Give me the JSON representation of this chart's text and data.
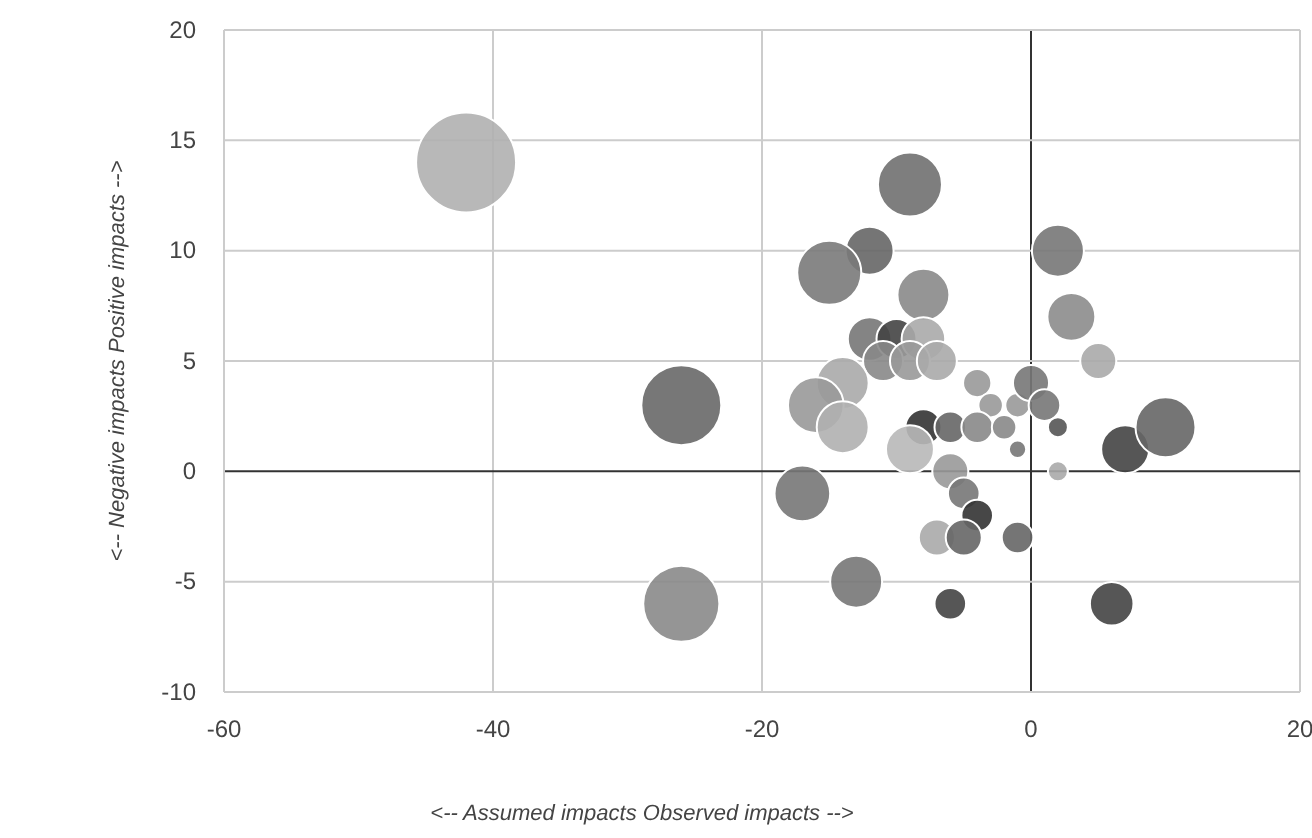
{
  "chart_data": {
    "type": "bubble",
    "xlabel": "<-- Assumed impacts Observed impacts -->",
    "ylabel": "<-- Negative impacts Positive impacts -->",
    "x": [
      -42,
      -26,
      -26,
      -9,
      -12,
      -15,
      -8,
      2,
      3,
      5,
      -12,
      -10,
      -8,
      -11,
      -9,
      -7,
      -14,
      -16,
      -14,
      -4,
      -3,
      -1,
      0,
      1,
      2,
      -8,
      -6,
      -4,
      -2,
      -1,
      -9,
      -6,
      2,
      -17,
      -5,
      -4,
      -7,
      -5,
      -1,
      -13,
      -6,
      6,
      7,
      10
    ],
    "values": [
      14,
      3,
      -6,
      13,
      10,
      9,
      8,
      10,
      7,
      5,
      6,
      6,
      6,
      5,
      5,
      5,
      4,
      3,
      2,
      4,
      3,
      3,
      4,
      3,
      2,
      2,
      2,
      2,
      2,
      1,
      1,
      0,
      0,
      -1,
      -1,
      -2,
      -3,
      -3,
      -3,
      -5,
      -6,
      -6,
      1,
      2
    ],
    "sizes": [
      1,
      0.64,
      0.58,
      0.41,
      0.23,
      0.41,
      0.27,
      0.27,
      0.23,
      0.13,
      0.19,
      0.16,
      0.19,
      0.16,
      0.16,
      0.16,
      0.27,
      0.31,
      0.27,
      0.08,
      0.06,
      0.06,
      0.13,
      0.1,
      0.04,
      0.13,
      0.1,
      0.1,
      0.06,
      0.03,
      0.23,
      0.13,
      0.04,
      0.31,
      0.1,
      0.1,
      0.13,
      0.13,
      0.1,
      0.27,
      0.1,
      0.19,
      0.23,
      0.36
    ],
    "colors": [
      "#b0b0b0",
      "#686868",
      "#8a8a8a",
      "#707070",
      "#666666",
      "#7a7a7a",
      "#8a8a8a",
      "#777777",
      "#8c8c8c",
      "#aaaaaa",
      "#777777",
      "#444444",
      "#aaaaaa",
      "#888888",
      "#999999",
      "#aaaaaa",
      "#aaaaaa",
      "#999999",
      "#b0b0b0",
      "#999999",
      "#999999",
      "#999999",
      "#777777",
      "#777777",
      "#555555",
      "#333333",
      "#666666",
      "#888888",
      "#888888",
      "#777777",
      "#b8b8b8",
      "#999999",
      "#aaaaaa",
      "#777777",
      "#777777",
      "#333333",
      "#aaaaaa",
      "#666666",
      "#666666",
      "#777777",
      "#444444",
      "#444444",
      "#444444",
      "#666666"
    ],
    "xlim": [
      -60,
      20
    ],
    "xticks": [
      -60,
      -40,
      -20,
      0,
      20
    ],
    "ylim": [
      -10,
      20
    ],
    "yticks": [
      -10,
      -5,
      0,
      5,
      10,
      15,
      20
    ],
    "grid": true
  }
}
